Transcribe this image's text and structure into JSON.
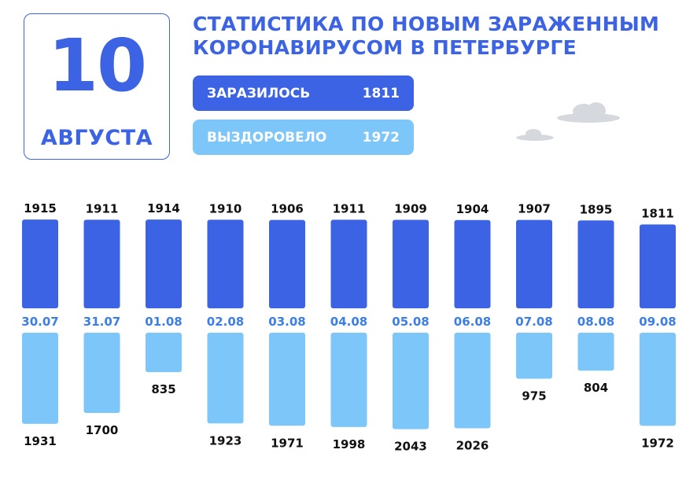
{
  "header": {
    "day": "10",
    "month": "АВГУСТА",
    "title_line1": "СТАТИСТИКА ПО НОВЫМ ЗАРАЖЕННЫМ",
    "title_line2": "КОРОНАВИРУСОМ В ПЕТЕРБУРГЕ"
  },
  "legend": {
    "infected_label": "ЗАРАЗИЛОСЬ",
    "infected_value": "1811",
    "recovered_label": "ВЫЗДОРОВЕЛО",
    "recovered_value": "1972"
  },
  "colors": {
    "infected": "#3b63e3",
    "recovered": "#7cc6fa",
    "date_text": "#3b7ee8",
    "value_text": "#111111"
  },
  "chart_data": {
    "type": "bar",
    "categories": [
      "30.07",
      "31.07",
      "01.08",
      "02.08",
      "03.08",
      "04.08",
      "05.08",
      "06.08",
      "07.08",
      "08.08",
      "09.08"
    ],
    "series": [
      {
        "name": "ЗАРАЗИЛОСЬ",
        "values": [
          1915,
          1911,
          1914,
          1910,
          1906,
          1911,
          1909,
          1904,
          1907,
          1895,
          1811
        ]
      },
      {
        "name": "ВЫЗДОРОВЕЛО",
        "values": [
          1931,
          1700,
          835,
          1923,
          1971,
          1998,
          2043,
          2026,
          975,
          804,
          1972
        ]
      }
    ]
  }
}
